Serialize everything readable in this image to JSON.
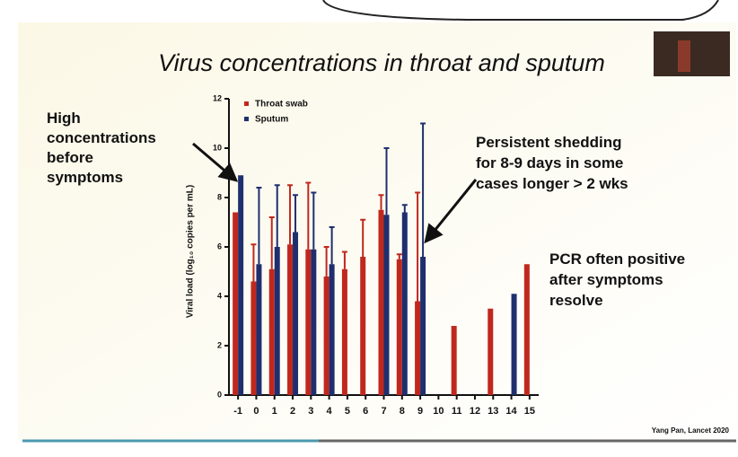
{
  "chart_data": {
    "type": "bar",
    "title": "Virus concentrations in throat and sputum",
    "y_label": "Viral load (log₁₀ copies per mL)",
    "categories": [
      "-1",
      "0",
      "1",
      "2",
      "3",
      "4",
      "5",
      "6",
      "7",
      "8",
      "9",
      "10",
      "11",
      "12",
      "13",
      "14",
      "15"
    ],
    "series": [
      {
        "name": "Throat swab",
        "color": "#c0281e",
        "values": [
          7.4,
          4.6,
          5.1,
          6.1,
          5.9,
          4.8,
          5.1,
          5.6,
          7.5,
          5.5,
          3.8,
          null,
          2.8,
          null,
          3.5,
          null,
          5.3
        ],
        "errors": [
          null,
          1.5,
          2.1,
          2.4,
          2.7,
          1.2,
          0.7,
          1.5,
          0.6,
          0.2,
          4.4,
          null,
          null,
          null,
          null,
          null,
          null
        ]
      },
      {
        "name": "Sputum",
        "color": "#1f2f6e",
        "values": [
          8.9,
          5.3,
          6.0,
          6.6,
          5.9,
          5.3,
          null,
          null,
          7.3,
          7.4,
          5.6,
          null,
          null,
          null,
          null,
          4.1,
          null
        ],
        "errors": [
          null,
          3.1,
          2.5,
          1.5,
          2.3,
          1.5,
          null,
          null,
          2.7,
          0.3,
          5.4,
          null,
          null,
          null,
          null,
          null,
          null
        ]
      }
    ],
    "ylim": [
      0,
      12
    ],
    "yticks": [
      0,
      2,
      4,
      6,
      8,
      10,
      12
    ],
    "annotations": [
      "High concentrations before symptoms",
      "Persistent shedding for 8-9 days in some cases longer > 2 wks",
      "PCR often positive after symptoms resolve"
    ],
    "source": "Yang Pan, Lancet 2020"
  }
}
